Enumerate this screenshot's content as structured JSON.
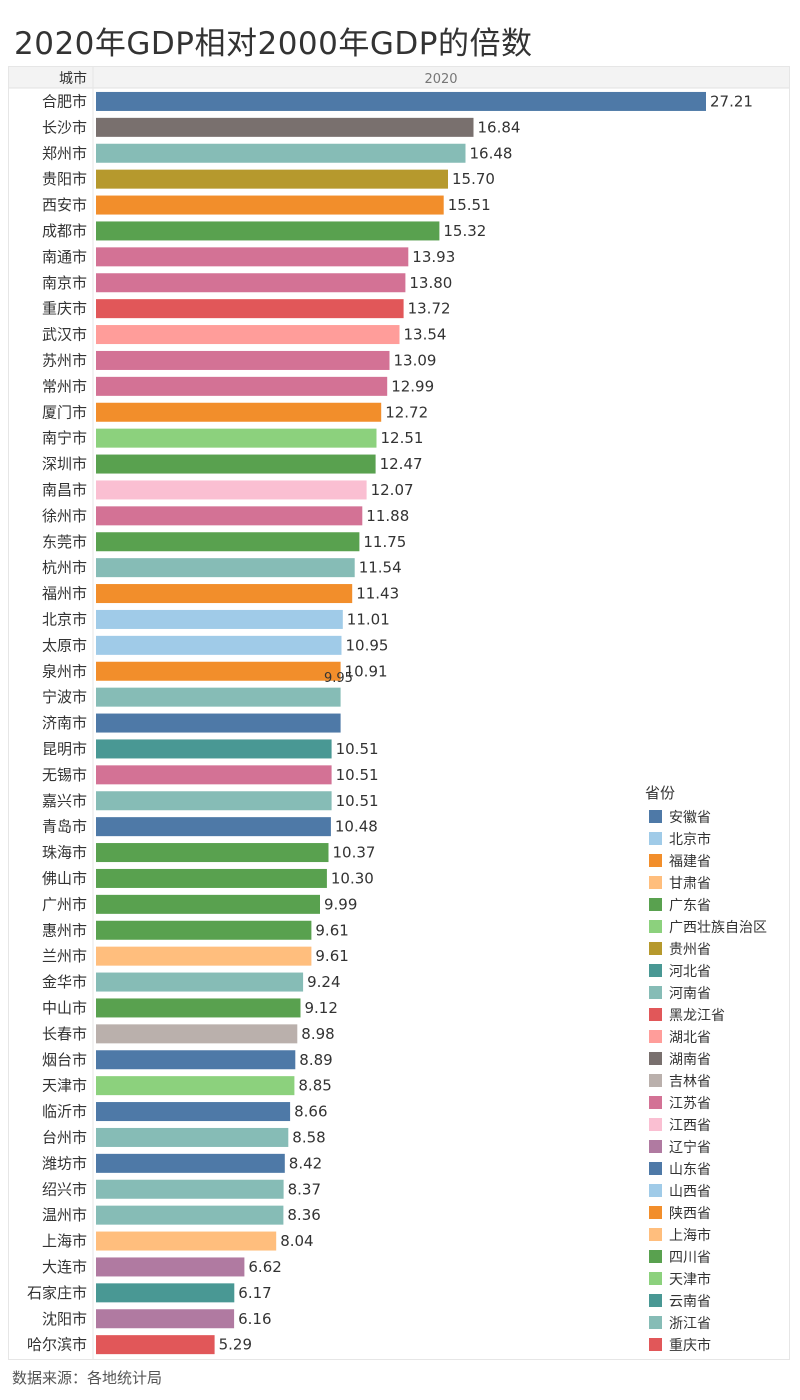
{
  "title": "2020年GDP相对2000年GDP的倍数",
  "source": "数据来源：各地统计局",
  "chart_data": {
    "type": "bar",
    "orientation": "horizontal",
    "title": "2020年GDP相对2000年GDP的倍数",
    "row_header": "城市",
    "column_header": "2020",
    "legend_title": "省份",
    "legend_position": "right",
    "xlim": [
      0,
      27.21
    ],
    "grid": false,
    "legend": [
      {
        "name": "安徽省",
        "color": "#4e79a7"
      },
      {
        "name": "北京市",
        "color": "#a0cbe8"
      },
      {
        "name": "福建省",
        "color": "#f28e2b"
      },
      {
        "name": "甘肃省",
        "color": "#ffbe7d"
      },
      {
        "name": "广东省",
        "color": "#59a14f"
      },
      {
        "name": "广西壮族自治区",
        "color": "#8cd17d"
      },
      {
        "name": "贵州省",
        "color": "#b6992d"
      },
      {
        "name": "河北省",
        "color": "#499894"
      },
      {
        "name": "河南省",
        "color": "#86bcb6"
      },
      {
        "name": "黑龙江省",
        "color": "#e15759"
      },
      {
        "name": "湖北省",
        "color": "#ff9d9a"
      },
      {
        "name": "湖南省",
        "color": "#79706e"
      },
      {
        "name": "吉林省",
        "color": "#bab0ac"
      },
      {
        "name": "江苏省",
        "color": "#d37295"
      },
      {
        "name": "江西省",
        "color": "#fabfd2"
      },
      {
        "name": "辽宁省",
        "color": "#b07aa1"
      },
      {
        "name": "山东省",
        "color": "#4e79a7"
      },
      {
        "name": "山西省",
        "color": "#a0cbe8"
      },
      {
        "name": "陕西省",
        "color": "#f28e2b"
      },
      {
        "name": "上海市",
        "color": "#ffbe7d"
      },
      {
        "name": "四川省",
        "color": "#59a14f"
      },
      {
        "name": "天津市",
        "color": "#8cd17d"
      },
      {
        "name": "云南省",
        "color": "#499894"
      },
      {
        "name": "浙江省",
        "color": "#86bcb6"
      },
      {
        "name": "重庆市",
        "color": "#e15759"
      }
    ],
    "rows": [
      {
        "city": "合肥市",
        "value": 27.21,
        "label": "27.21",
        "color": "#4e79a7"
      },
      {
        "city": "长沙市",
        "value": 16.84,
        "label": "16.84",
        "color": "#79706e"
      },
      {
        "city": "郑州市",
        "value": 16.48,
        "label": "16.48",
        "color": "#86bcb6"
      },
      {
        "city": "贵阳市",
        "value": 15.7,
        "label": "15.70",
        "color": "#b6992d"
      },
      {
        "city": "西安市",
        "value": 15.51,
        "label": "15.51",
        "color": "#f28e2b"
      },
      {
        "city": "成都市",
        "value": 15.32,
        "label": "15.32",
        "color": "#59a14f"
      },
      {
        "city": "南通市",
        "value": 13.93,
        "label": "13.93",
        "color": "#d37295"
      },
      {
        "city": "南京市",
        "value": 13.8,
        "label": "13.80",
        "color": "#d37295"
      },
      {
        "city": "重庆市",
        "value": 13.72,
        "label": "13.72",
        "color": "#e15759"
      },
      {
        "city": "武汉市",
        "value": 13.54,
        "label": "13.54",
        "color": "#ff9d9a"
      },
      {
        "city": "苏州市",
        "value": 13.09,
        "label": "13.09",
        "color": "#d37295"
      },
      {
        "city": "常州市",
        "value": 12.99,
        "label": "12.99",
        "color": "#d37295"
      },
      {
        "city": "厦门市",
        "value": 12.72,
        "label": "12.72",
        "color": "#f28e2b"
      },
      {
        "city": "南宁市",
        "value": 12.51,
        "label": "12.51",
        "color": "#8cd17d"
      },
      {
        "city": "深圳市",
        "value": 12.47,
        "label": "12.47",
        "color": "#59a14f"
      },
      {
        "city": "南昌市",
        "value": 12.07,
        "label": "12.07",
        "color": "#fabfd2"
      },
      {
        "city": "徐州市",
        "value": 11.88,
        "label": "11.88",
        "color": "#d37295"
      },
      {
        "city": "东莞市",
        "value": 11.75,
        "label": "11.75",
        "color": "#59a14f"
      },
      {
        "city": "杭州市",
        "value": 11.54,
        "label": "11.54",
        "color": "#86bcb6"
      },
      {
        "city": "福州市",
        "value": 11.43,
        "label": "11.43",
        "color": "#f28e2b"
      },
      {
        "city": "北京市",
        "value": 11.01,
        "label": "11.01",
        "color": "#a0cbe8"
      },
      {
        "city": "太原市",
        "value": 10.95,
        "label": "10.95",
        "color": "#a0cbe8"
      },
      {
        "city": "泉州市",
        "value": 10.91,
        "label": "10.91",
        "color": "#f28e2b"
      },
      {
        "city": "宁波市",
        "value": 10.91,
        "label": "",
        "color": "#86bcb6"
      },
      {
        "city": "济南市",
        "value": 10.91,
        "label": "",
        "color": "#4e79a7"
      },
      {
        "city": "昆明市",
        "value": 10.51,
        "label": "10.51",
        "color": "#499894"
      },
      {
        "city": "无锡市",
        "value": 10.51,
        "label": "10.51",
        "color": "#d37295"
      },
      {
        "city": "嘉兴市",
        "value": 10.51,
        "label": "10.51",
        "color": "#86bcb6"
      },
      {
        "city": "青岛市",
        "value": 10.48,
        "label": "10.48",
        "color": "#4e79a7"
      },
      {
        "city": "珠海市",
        "value": 10.37,
        "label": "10.37",
        "color": "#59a14f"
      },
      {
        "city": "佛山市",
        "value": 10.3,
        "label": "10.30",
        "color": "#59a14f"
      },
      {
        "city": "广州市",
        "value": 9.99,
        "label": "9.99",
        "color": "#59a14f"
      },
      {
        "city": "惠州市",
        "value": 9.61,
        "label": "9.61",
        "color": "#59a14f"
      },
      {
        "city": "兰州市",
        "value": 9.61,
        "label": "9.61",
        "color": "#ffbe7d"
      },
      {
        "city": "金华市",
        "value": 9.24,
        "label": "9.24",
        "color": "#86bcb6"
      },
      {
        "city": "中山市",
        "value": 9.12,
        "label": "9.12",
        "color": "#59a14f"
      },
      {
        "city": "长春市",
        "value": 8.98,
        "label": "8.98",
        "color": "#bab0ac"
      },
      {
        "city": "烟台市",
        "value": 8.89,
        "label": "8.89",
        "color": "#4e79a7"
      },
      {
        "city": "天津市",
        "value": 8.85,
        "label": "8.85",
        "color": "#8cd17d"
      },
      {
        "city": "临沂市",
        "value": 8.66,
        "label": "8.66",
        "color": "#4e79a7"
      },
      {
        "city": "台州市",
        "value": 8.58,
        "label": "8.58",
        "color": "#86bcb6"
      },
      {
        "city": "潍坊市",
        "value": 8.42,
        "label": "8.42",
        "color": "#4e79a7"
      },
      {
        "city": "绍兴市",
        "value": 8.37,
        "label": "8.37",
        "color": "#86bcb6"
      },
      {
        "city": "温州市",
        "value": 8.36,
        "label": "8.36",
        "color": "#86bcb6"
      },
      {
        "city": "上海市",
        "value": 8.04,
        "label": "8.04",
        "color": "#ffbe7d"
      },
      {
        "city": "大连市",
        "value": 6.62,
        "label": "6.62",
        "color": "#b07aa1"
      },
      {
        "city": "石家庄市",
        "value": 6.17,
        "label": "6.17",
        "color": "#499894"
      },
      {
        "city": "沈阳市",
        "value": 6.16,
        "label": "6.16",
        "color": "#b07aa1"
      },
      {
        "city": "哈尔滨市",
        "value": 5.29,
        "label": "5.29",
        "color": "#e15759"
      }
    ],
    "tooltip_fragment": "9.95"
  }
}
